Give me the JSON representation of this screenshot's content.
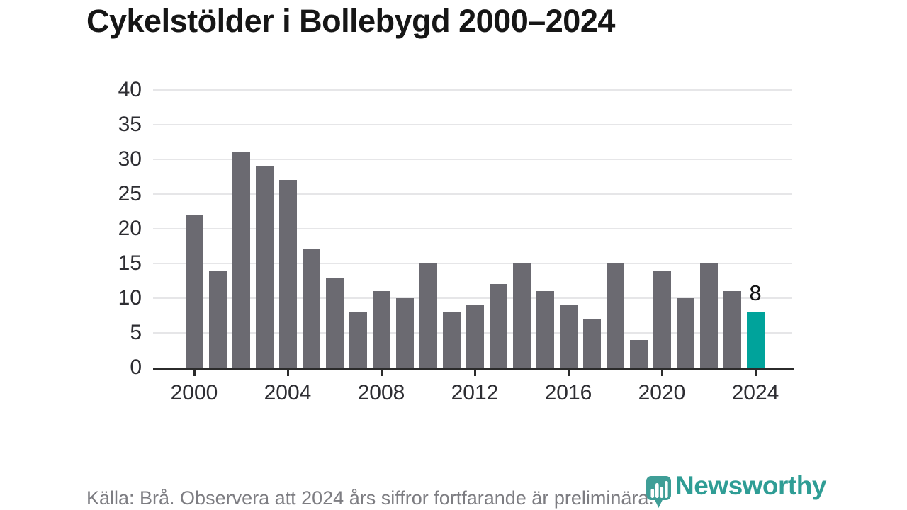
{
  "header": {
    "title": "Cykelstölder i Bollebygd 2000–2024"
  },
  "chart_data": {
    "type": "bar",
    "title": "Cykelstölder i Bollebygd 2000–2024",
    "categories": [
      2000,
      2001,
      2002,
      2003,
      2004,
      2005,
      2006,
      2007,
      2008,
      2009,
      2010,
      2011,
      2012,
      2013,
      2014,
      2015,
      2016,
      2017,
      2018,
      2019,
      2020,
      2021,
      2022,
      2023,
      2024
    ],
    "values": [
      22,
      14,
      31,
      29,
      27,
      17,
      13,
      8,
      11,
      10,
      15,
      8,
      9,
      12,
      15,
      11,
      9,
      7,
      15,
      4,
      14,
      10,
      15,
      11,
      8
    ],
    "xlabel": "",
    "ylabel": "",
    "ylim": [
      0,
      40
    ],
    "yticks": [
      0,
      5,
      10,
      15,
      20,
      25,
      30,
      35,
      40
    ],
    "xticks": [
      2000,
      2004,
      2008,
      2012,
      2016,
      2020,
      2024
    ],
    "grid": "horizontal",
    "legend": "none",
    "bar_color": "#6b6a71",
    "highlight_color": "#00a39b",
    "highlight_index": 24,
    "annotation": {
      "index": 24,
      "text": "8"
    }
  },
  "footer": {
    "source_note": "Källa: Brå. Observera att 2024 års siffror fortfarande är preliminära.",
    "logo": {
      "text": "Newsworthy",
      "color": "#2f9d95",
      "icon_color": "#3f9e97",
      "icon": "newsworthy-bubble-barchart-icon"
    }
  }
}
